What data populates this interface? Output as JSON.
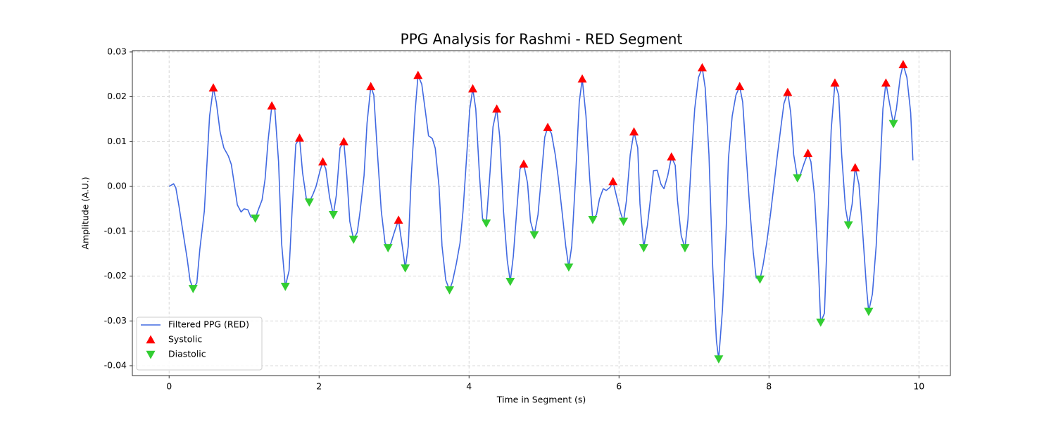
{
  "chart_data": {
    "type": "line",
    "title": "PPG Analysis for Rashmi - RED Segment",
    "x_label": "Time in Segment (s)",
    "y_label": "Amplitude (A.U.)",
    "xlim": [
      -0.49,
      10.42
    ],
    "xticks": [
      0,
      2,
      4,
      6,
      8,
      10
    ],
    "ylim": [
      -0.0422,
      0.0303
    ],
    "yticks": [
      -0.04,
      -0.03,
      -0.02,
      -0.01,
      {
        "value": 0,
        "label": "0.00"
      },
      0.01,
      0.02,
      0.03
    ],
    "grid": true,
    "legend": "lower left",
    "series": [
      {
        "name": "Filtered PPG (RED)",
        "color": "#4169e1",
        "style": "line",
        "x": [
          0,
          0.06,
          0.09,
          0.13,
          0.19,
          0.24,
          0.28,
          0.32,
          0.37,
          0.41,
          0.47,
          0.54,
          0.59,
          0.63,
          0.68,
          0.73,
          0.79,
          0.83,
          0.87,
          0.91,
          0.96,
          1.0,
          1.05,
          1.09,
          1.15,
          1.19,
          1.24,
          1.28,
          1.32,
          1.37,
          1.41,
          1.46,
          1.5,
          1.55,
          1.6,
          1.64,
          1.69,
          1.74,
          1.78,
          1.83,
          1.87,
          1.92,
          1.96,
          2.01,
          2.05,
          2.09,
          2.14,
          2.19,
          2.23,
          2.28,
          2.33,
          2.37,
          2.41,
          2.46,
          2.51,
          2.55,
          2.6,
          2.64,
          2.69,
          2.73,
          2.78,
          2.83,
          2.88,
          2.92,
          2.96,
          3.01,
          3.06,
          3.11,
          3.15,
          3.19,
          3.23,
          3.28,
          3.32,
          3.37,
          3.42,
          3.46,
          3.51,
          3.55,
          3.6,
          3.64,
          3.69,
          3.74,
          3.78,
          3.83,
          3.88,
          3.92,
          3.97,
          4.01,
          4.05,
          4.09,
          4.14,
          4.18,
          4.23,
          4.28,
          4.32,
          4.37,
          4.41,
          4.46,
          4.51,
          4.55,
          4.59,
          4.64,
          4.68,
          4.73,
          4.78,
          4.82,
          4.87,
          4.92,
          4.97,
          5.01,
          5.05,
          5.1,
          5.15,
          5.19,
          5.24,
          5.29,
          5.33,
          5.37,
          5.42,
          5.47,
          5.51,
          5.56,
          5.61,
          5.65,
          5.7,
          5.74,
          5.79,
          5.83,
          5.88,
          5.92,
          5.97,
          6.02,
          6.06,
          6.1,
          6.15,
          6.2,
          6.25,
          6.28,
          6.33,
          6.38,
          6.42,
          6.46,
          6.51,
          6.56,
          6.6,
          6.65,
          6.7,
          6.75,
          6.78,
          6.83,
          6.88,
          6.92,
          6.97,
          7.01,
          7.06,
          7.11,
          7.15,
          7.2,
          7.25,
          7.3,
          7.33,
          7.38,
          7.43,
          7.46,
          7.51,
          7.56,
          7.61,
          7.65,
          7.69,
          7.74,
          7.79,
          7.83,
          7.88,
          7.92,
          7.97,
          8.02,
          8.07,
          8.11,
          8.16,
          8.2,
          8.25,
          8.29,
          8.33,
          8.38,
          8.42,
          8.47,
          8.52,
          8.56,
          8.61,
          8.66,
          8.69,
          8.74,
          8.79,
          8.83,
          8.88,
          8.93,
          8.97,
          9.02,
          9.06,
          9.11,
          9.15,
          9.2,
          9.25,
          9.3,
          9.33,
          9.38,
          9.43,
          9.48,
          9.52,
          9.56,
          9.61,
          9.66,
          9.7,
          9.75,
          9.79,
          9.84,
          9.89,
          9.92
        ],
        "values": [
          0,
          0.0006,
          -0.0003,
          -0.0042,
          -0.0107,
          -0.016,
          -0.021,
          -0.0228,
          -0.0215,
          -0.014,
          -0.0055,
          0.0157,
          0.022,
          0.0188,
          0.0122,
          0.0086,
          0.0068,
          0.0049,
          0.0005,
          -0.0041,
          -0.0057,
          -0.005,
          -0.0052,
          -0.0068,
          -0.0071,
          -0.0052,
          -0.003,
          0.0016,
          0.0102,
          0.018,
          0.0173,
          0.0055,
          -0.0126,
          -0.0223,
          -0.0188,
          -0.0055,
          0.0094,
          0.0108,
          0.0031,
          -0.0027,
          -0.0035,
          -0.0017,
          0,
          0.0033,
          0.0055,
          0.0039,
          -0.0024,
          -0.0063,
          -0.002,
          0.0086,
          0.01,
          0.0024,
          -0.0078,
          -0.0118,
          -0.0102,
          -0.0052,
          0.0024,
          0.0141,
          0.0223,
          0.0204,
          0.0071,
          -0.0055,
          -0.0126,
          -0.0137,
          -0.0126,
          -0.0099,
          -0.0075,
          -0.0133,
          -0.0182,
          -0.0133,
          0.0024,
          0.0165,
          0.0248,
          0.0228,
          0.0165,
          0.0113,
          0.0107,
          0.0085,
          0,
          -0.0133,
          -0.0209,
          -0.0231,
          -0.0212,
          -0.0173,
          -0.0126,
          -0.0055,
          0.0071,
          0.0173,
          0.0218,
          0.0173,
          0.0024,
          -0.0071,
          -0.0082,
          0.0031,
          0.0133,
          0.0173,
          0.011,
          -0.0055,
          -0.0165,
          -0.0212,
          -0.0157,
          -0.0047,
          0.0039,
          0.005,
          0.0008,
          -0.0078,
          -0.0108,
          -0.0063,
          0.0031,
          0.011,
          0.0132,
          0.0118,
          0.0071,
          0.002,
          -0.0055,
          -0.0133,
          -0.018,
          -0.0133,
          0.0016,
          0.0188,
          0.024,
          0.0157,
          0.0016,
          -0.0074,
          -0.0063,
          -0.0028,
          -0.0005,
          -0.0009,
          -0.0002,
          0.0011,
          -0.0024,
          -0.0058,
          -0.0078,
          -0.0031,
          0.0071,
          0.0122,
          0.0086,
          -0.0039,
          -0.0137,
          -0.0086,
          -0.0027,
          0.0035,
          0.0036,
          0.0005,
          -0.0005,
          0.0024,
          0.0066,
          0.0047,
          -0.0031,
          -0.011,
          -0.0137,
          -0.0074,
          0.0071,
          0.0173,
          0.0243,
          0.0265,
          0.022,
          0.0071,
          -0.018,
          -0.0345,
          -0.0385,
          -0.0275,
          -0.0094,
          0.0063,
          0.0157,
          0.0204,
          0.0223,
          0.0188,
          0.0086,
          -0.0039,
          -0.0146,
          -0.0204,
          -0.0207,
          -0.0177,
          -0.0126,
          -0.0063,
          0.0008,
          0.0066,
          0.0133,
          0.0185,
          0.021,
          0.0165,
          0.0071,
          0.0019,
          0.0027,
          0.0052,
          0.0074,
          0.0055,
          -0.0024,
          -0.018,
          -0.0303,
          -0.0283,
          -0.0055,
          0.0126,
          0.0231,
          0.0204,
          0.0071,
          -0.0047,
          -0.0086,
          -0.0039,
          0.0042,
          0.0005,
          -0.0102,
          -0.0224,
          -0.0279,
          -0.024,
          -0.0133,
          0.0031,
          0.0173,
          0.0231,
          0.0184,
          0.014,
          0.0173,
          0.0243,
          0.0272,
          0.0243,
          0.0165,
          0.0058
        ]
      },
      {
        "name": "Systolic",
        "color": "#ff0000",
        "marker": "triangle-up",
        "x": [
          0.59,
          1.37,
          1.74,
          2.05,
          2.33,
          2.69,
          3.06,
          3.32,
          4.05,
          4.37,
          4.73,
          5.05,
          5.51,
          5.92,
          6.2,
          6.7,
          7.11,
          7.61,
          8.25,
          8.52,
          8.88,
          9.15,
          9.56,
          9.79
        ],
        "values": [
          0.022,
          0.018,
          0.0108,
          0.0055,
          0.01,
          0.0223,
          -0.0075,
          0.0248,
          0.0218,
          0.0173,
          0.005,
          0.0132,
          0.024,
          0.0011,
          0.0122,
          0.0066,
          0.0265,
          0.0223,
          0.021,
          0.0074,
          0.0231,
          0.0042,
          0.0231,
          0.0272
        ]
      },
      {
        "name": "Diastolic",
        "color": "#32cd32",
        "marker": "triangle-down",
        "x": [
          0.32,
          1.15,
          1.55,
          1.87,
          2.19,
          2.46,
          2.92,
          3.15,
          3.74,
          4.23,
          4.55,
          4.87,
          5.33,
          5.65,
          6.06,
          6.33,
          6.88,
          7.33,
          7.88,
          8.38,
          8.69,
          9.06,
          9.33,
          9.66
        ],
        "values": [
          -0.0228,
          -0.0071,
          -0.0223,
          -0.0035,
          -0.0063,
          -0.0118,
          -0.0137,
          -0.0182,
          -0.0231,
          -0.0082,
          -0.0212,
          -0.0108,
          -0.018,
          -0.0074,
          -0.0078,
          -0.0137,
          -0.0137,
          -0.0385,
          -0.0207,
          0.0019,
          -0.0303,
          -0.0086,
          -0.0279,
          0.014
        ]
      }
    ]
  }
}
